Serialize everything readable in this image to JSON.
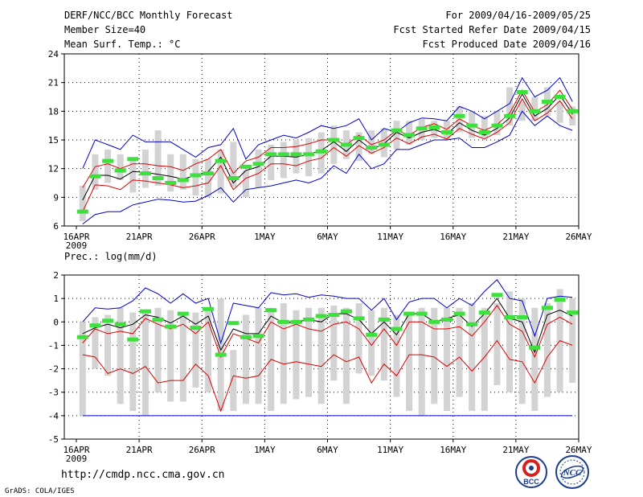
{
  "header": {
    "title": "DERF/NCC/BCC Monthly Forecast",
    "member_size": "Member Size=40",
    "variable": "Mean Surf. Temp.: °C",
    "period": "For 2009/04/16-2009/05/25",
    "started": "Fcst Started Refer Date 2009/04/15",
    "produced": "Fcst Produced Date 2009/04/16"
  },
  "footer": {
    "url": "http://cmdp.ncc.cma.gov.cn",
    "credit": "GrADS: COLA/IGES"
  },
  "logos": {
    "bcc": "BCC",
    "ncc": "NCC"
  },
  "colors": {
    "box": "#d3d3d3",
    "median": "#000000",
    "spread": "#e00000",
    "extremes": "#0000d0",
    "mean": "#3ee03e",
    "grid": "#000000"
  },
  "chart_data": [
    {
      "type": "line",
      "title": "Mean Surf. Temp.: °C",
      "xlabel": "",
      "ylabel": "°C",
      "ylim": [
        6,
        24
      ],
      "yticks": [
        "24",
        "21",
        "18",
        "15",
        "12",
        "9",
        "6"
      ],
      "ytick_values": [
        24,
        21,
        18,
        15,
        12,
        9,
        6
      ],
      "xticks": [
        "16APR",
        "21APR",
        "26APR",
        "1MAY",
        "6MAY",
        "11MAY",
        "16MAY",
        "21MAY",
        "26MAY"
      ],
      "xtick_days": [
        0,
        5,
        10,
        15,
        20,
        25,
        30,
        35,
        40
      ],
      "year_label": "2009",
      "days": 40,
      "box_low": [
        6.5,
        9.8,
        10.5,
        10.8,
        9.5,
        10,
        10.2,
        9.6,
        9.8,
        9.2,
        9.0,
        9.4,
        10.1,
        9.0,
        10.0,
        10.8,
        11.0,
        11.5,
        11.2,
        11.5,
        12.5,
        13.0,
        12.8,
        13.5,
        13.2,
        14.0,
        14.5,
        15.0,
        15.2,
        15.0,
        15.8,
        15.2,
        15.2,
        15.5,
        16.5,
        17.0,
        17.0,
        17.5,
        16.8,
        16.5
      ],
      "box_high": [
        10.2,
        13.5,
        14.0,
        13.5,
        13.2,
        14.0,
        16.0,
        13.5,
        13.5,
        13.0,
        13.0,
        14.0,
        14.8,
        11.8,
        14.0,
        14.5,
        14.8,
        15.0,
        15.2,
        15.8,
        16.5,
        16.0,
        15.8,
        16.0,
        16.2,
        17.0,
        17.0,
        17.2,
        17.0,
        17.0,
        18.5,
        18.0,
        17.5,
        18.0,
        20.5,
        19.0,
        19.5,
        20.5,
        19.0,
        18.5
      ],
      "mean": [
        7.5,
        11.2,
        12.8,
        11.8,
        13.0,
        11.5,
        11.0,
        10.5,
        10.8,
        11.3,
        11.5,
        12.8,
        11.0,
        12.2,
        12.5,
        13.5,
        13.5,
        13.5,
        13.5,
        13.8,
        15.0,
        14.5,
        15.2,
        14.2,
        14.5,
        16.0,
        15.5,
        16.2,
        16.3,
        15.8,
        17.5,
        16.5,
        15.8,
        16.5,
        17.5,
        20.0,
        18.0,
        19.0,
        19.5,
        18.0
      ],
      "series": [
        {
          "name": "max",
          "role": "extremes",
          "values": [
            12.0,
            15.0,
            14.5,
            14.0,
            15.5,
            14.8,
            14.8,
            14.8,
            14.0,
            13.2,
            14.2,
            14.5,
            16.2,
            13.0,
            14.5,
            15.0,
            15.5,
            15.2,
            15.8,
            16.5,
            16.2,
            16.5,
            17.2,
            15.0,
            16.2,
            15.8,
            16.8,
            17.3,
            17.2,
            17.0,
            18.5,
            18.0,
            17.2,
            18.0,
            18.8,
            21.5,
            19.5,
            20.2,
            21.5,
            19.0
          ]
        },
        {
          "name": "p90",
          "role": "spread",
          "values": [
            10.0,
            12.2,
            12.5,
            12.0,
            12.5,
            12.5,
            12.3,
            12.2,
            11.8,
            12.5,
            13.0,
            14.0,
            11.5,
            12.8,
            13.2,
            14.2,
            14.2,
            14.3,
            14.6,
            15.0,
            15.0,
            14.5,
            15.5,
            14.5,
            15.0,
            16.0,
            15.5,
            16.3,
            16.7,
            16.1,
            17.2,
            16.5,
            16.0,
            16.6,
            17.8,
            20.2,
            17.9,
            18.7,
            20.2,
            18.2
          ]
        },
        {
          "name": "median",
          "role": "median",
          "values": [
            8.7,
            11.3,
            11.3,
            10.9,
            11.7,
            11.6,
            11.4,
            11.2,
            10.9,
            11.3,
            11.7,
            13.2,
            10.5,
            11.8,
            12.2,
            13.3,
            13.3,
            13.2,
            13.5,
            13.9,
            14.8,
            13.8,
            15.0,
            14.0,
            14.6,
            15.8,
            15.2,
            15.8,
            16.1,
            15.6,
            16.8,
            16.0,
            15.5,
            16.2,
            17.3,
            19.8,
            17.5,
            18.3,
            19.7,
            17.7
          ]
        },
        {
          "name": "p10",
          "role": "spread",
          "values": [
            7.5,
            10.3,
            10.2,
            9.8,
            10.8,
            10.7,
            10.5,
            10.3,
            10.0,
            10.2,
            10.5,
            12.3,
            9.8,
            11.0,
            11.5,
            12.5,
            12.5,
            12.3,
            12.8,
            13.1,
            14.2,
            13.3,
            14.4,
            13.6,
            14.2,
            15.2,
            14.6,
            15.3,
            15.6,
            15.1,
            16.2,
            15.6,
            15.1,
            15.8,
            16.8,
            19.3,
            17.0,
            17.8,
            19.1,
            17.2
          ]
        },
        {
          "name": "min",
          "role": "extremes",
          "values": [
            6.2,
            7.2,
            7.5,
            7.5,
            8.2,
            8.5,
            8.8,
            8.7,
            8.5,
            8.6,
            9.2,
            10.0,
            8.5,
            9.8,
            10.0,
            10.2,
            10.5,
            10.8,
            10.5,
            11.0,
            12.3,
            11.5,
            13.5,
            12.0,
            12.5,
            14.0,
            14.0,
            14.5,
            15.0,
            15.0,
            15.2,
            14.2,
            14.2,
            14.8,
            15.5,
            18.0,
            16.5,
            17.5,
            16.5,
            16.0
          ]
        }
      ]
    },
    {
      "type": "line",
      "title": "Prec.: log(mm/d)",
      "xlabel": "",
      "ylabel": "log(mm/d)",
      "ylim": [
        -5,
        2
      ],
      "yticks": [
        "2",
        "1",
        "0",
        "-1",
        "-2",
        "-3",
        "-4",
        "-5"
      ],
      "ytick_values": [
        2,
        1,
        0,
        -1,
        -2,
        -3,
        -4,
        -5
      ],
      "xticks": [
        "16APR",
        "21APR",
        "26APR",
        "1MAY",
        "6MAY",
        "11MAY",
        "16MAY",
        "21MAY",
        "26MAY"
      ],
      "xtick_days": [
        0,
        5,
        10,
        15,
        20,
        25,
        30,
        35,
        40
      ],
      "year_label": "2009",
      "days": 40,
      "floor_line": -4,
      "box_low": [
        -4,
        -2,
        -2.3,
        -3.5,
        -3.8,
        -4,
        -3,
        -3.4,
        -3.4,
        -2.8,
        -3,
        -3.8,
        -3.8,
        -3.5,
        -3.5,
        -3.8,
        -3.5,
        -3.3,
        -3.2,
        -3.5,
        -2.5,
        -3.5,
        -2.2,
        -2.3,
        -2.5,
        -3.2,
        -3.8,
        -4,
        -3.5,
        -3.8,
        -3.2,
        -3.8,
        -3.8,
        -2.7,
        -3,
        -3.5,
        -3.8,
        -3.2,
        -3,
        -2.6
      ],
      "box_high": [
        0,
        0.2,
        0.3,
        0.6,
        0.4,
        0.5,
        0.6,
        0.5,
        0.4,
        0.4,
        0.6,
        1.0,
        -1.2,
        0.3,
        0.6,
        0.6,
        0.8,
        0.5,
        0.6,
        0.6,
        0.7,
        0.6,
        0.8,
        0.5,
        0.6,
        0.3,
        0.4,
        0.6,
        0.6,
        0.6,
        0.6,
        0.8,
        0.6,
        0.8,
        1.3,
        1.0,
        0.6,
        0.8,
        1.4,
        1.0
      ],
      "mean": [
        -0.65,
        -0.15,
        0.05,
        -0.1,
        -0.75,
        0.45,
        0.1,
        -0.2,
        0.35,
        -0.25,
        0.55,
        -1.4,
        -0.05,
        -0.65,
        -0.6,
        0.5,
        0.0,
        0.0,
        0.1,
        0.25,
        0.3,
        0.45,
        0.15,
        -0.55,
        0.1,
        -0.3,
        0.35,
        0.35,
        0.0,
        0.1,
        0.35,
        -0.1,
        0.4,
        1.15,
        0.2,
        0.2,
        -1.1,
        0.6,
        0.95,
        0.4
      ],
      "series": [
        {
          "name": "max",
          "role": "extremes",
          "values": [
            0.0,
            0.6,
            0.55,
            0.6,
            0.9,
            1.45,
            1.2,
            0.8,
            1.2,
            0.8,
            1.0,
            -0.9,
            0.8,
            0.7,
            0.6,
            1.25,
            1.15,
            1.2,
            1.05,
            1.15,
            1.1,
            1.0,
            1.0,
            0.5,
            1.0,
            0.1,
            0.85,
            1.0,
            1.0,
            0.6,
            1.0,
            0.7,
            1.3,
            1.8,
            1.0,
            0.9,
            -0.6,
            1.0,
            1.1,
            1.05
          ]
        },
        {
          "name": "median",
          "role": "median",
          "values": [
            -0.5,
            -0.25,
            -0.1,
            -0.25,
            -0.1,
            0.3,
            0.2,
            -0.05,
            0.25,
            -0.1,
            0.25,
            -1.2,
            -0.3,
            -0.5,
            -0.5,
            0.25,
            -0.05,
            0.0,
            0.1,
            0.0,
            0.35,
            0.35,
            0.1,
            -0.5,
            0.0,
            -0.55,
            0.35,
            0.35,
            0.0,
            0.15,
            0.3,
            -0.2,
            0.35,
            1.0,
            0.15,
            0.0,
            -1.3,
            0.3,
            0.5,
            0.25
          ]
        },
        {
          "name": "p90",
          "role": "spread",
          "values": [
            -0.9,
            -0.3,
            -0.5,
            -0.4,
            -0.5,
            0.15,
            -0.1,
            -0.3,
            -0.1,
            -0.5,
            0.0,
            -1.5,
            -0.5,
            -0.7,
            -0.9,
            0.0,
            -0.3,
            -0.1,
            -0.3,
            -0.4,
            -0.1,
            0.0,
            -0.3,
            -1.0,
            -0.3,
            -1.0,
            0.0,
            0.0,
            -0.3,
            -0.3,
            -0.2,
            -0.6,
            0.0,
            0.7,
            -0.1,
            -0.4,
            -1.5,
            -0.1,
            0.2,
            -0.1
          ]
        },
        {
          "name": "p10",
          "role": "spread",
          "values": [
            -1.4,
            -1.5,
            -2.2,
            -2.0,
            -2.2,
            -1.9,
            -2.6,
            -2.5,
            -2.5,
            -1.8,
            -2.3,
            -3.8,
            -2.3,
            -2.4,
            -2.3,
            -1.6,
            -1.8,
            -1.7,
            -1.8,
            -1.9,
            -1.4,
            -1.7,
            -1.5,
            -2.6,
            -1.8,
            -2.3,
            -1.4,
            -1.4,
            -1.5,
            -1.9,
            -1.5,
            -2.1,
            -1.5,
            -0.8,
            -1.6,
            -1.7,
            -2.6,
            -1.5,
            -0.8,
            -1.0
          ]
        }
      ]
    }
  ]
}
